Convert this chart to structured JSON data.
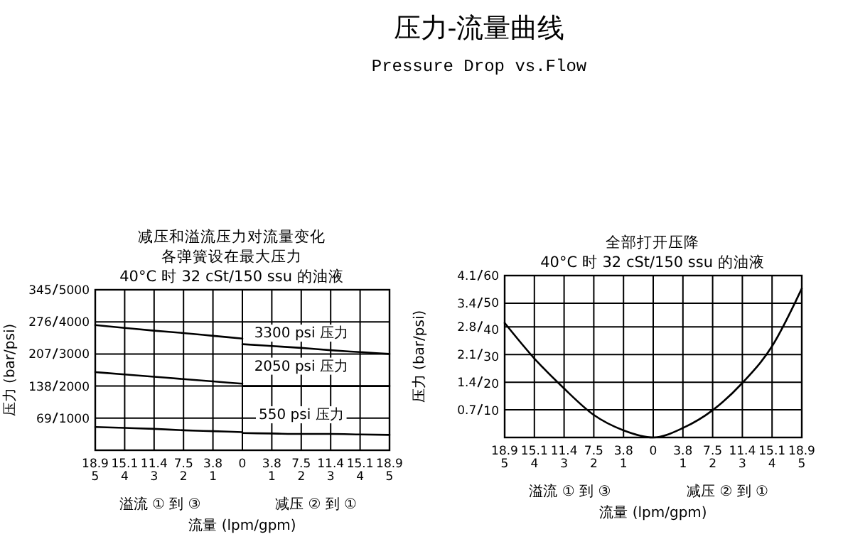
{
  "chart_data": [
    {
      "type": "other",
      "title": "压力-流量曲线",
      "subtitle": "Pressure Drop vs.Flow"
    },
    {
      "type": "line",
      "title": "减压和溢流压力对流量变化各弹簧设在最大压力",
      "subtitle": "40°C 时 32 cSt/150 ssu 的油液",
      "xlabel": "流量 (lpm/gpm)",
      "ylabel": "压力 (bar/psi)",
      "annotations": [
        "溢流 ① 到 ③",
        "减压 ② 到 ①"
      ],
      "categories": [
        "18.9\n5",
        "15.1\n4",
        "11.4\n3",
        "7.5\n2",
        "3.8\n1",
        "0",
        "3.8\n1",
        "7.5\n2",
        "11.4\n3",
        "15.1\n4",
        "18.9\n5"
      ],
      "ylim": [
        0,
        345
      ],
      "yticks": [
        69,
        138,
        207,
        276,
        345
      ],
      "y2lim": [
        0,
        5000
      ],
      "y2ticks": [
        1000,
        2000,
        3000,
        4000,
        5000
      ],
      "grid": true,
      "legend": false,
      "marker": "none",
      "line_style": "solid",
      "series": [
        {
          "color": "#000000",
          "values": [
            269,
            263,
            257,
            252,
            246,
            240,
            null,
            null,
            null,
            null,
            null
          ]
        },
        {
          "name": "3300 psi 压力",
          "color": "#000000",
          "values": [
            null,
            null,
            null,
            null,
            null,
            228,
            224,
            220,
            215,
            211,
            207
          ]
        },
        {
          "color": "#000000",
          "values": [
            168,
            163,
            158,
            153,
            148,
            143,
            null,
            null,
            null,
            null,
            null
          ]
        },
        {
          "name": "2050 psi 压力",
          "color": "#000000",
          "values": [
            null,
            null,
            null,
            null,
            null,
            138,
            138,
            138,
            138,
            138,
            138
          ]
        },
        {
          "color": "#000000",
          "values": [
            50,
            48,
            46,
            43,
            41,
            39,
            null,
            null,
            null,
            null,
            null
          ]
        },
        {
          "name": "550 psi 压力",
          "color": "#000000",
          "values": [
            null,
            null,
            null,
            null,
            null,
            37,
            36,
            35,
            35,
            34,
            33
          ]
        }
      ]
    },
    {
      "type": "line",
      "title": "全部打开压降",
      "subtitle": "40°C 时 32 cSt/150 ssu 的油液",
      "xlabel": "流量 (lpm/gpm)",
      "ylabel": "压力 (bar/psi)",
      "annotations": [
        "溢流 ① 到 ③",
        "减压 ② 到 ①"
      ],
      "categories": [
        "18.9\n5",
        "15.1\n4",
        "11.4\n3",
        "7.5\n2",
        "3.8\n1",
        "0",
        "3.8\n1",
        "7.5\n2",
        "11.4\n3",
        "15.1\n4",
        "18.9\n5"
      ],
      "ylim": [
        0,
        4.1
      ],
      "yticks": [
        0.7,
        1.4,
        2.1,
        2.8,
        3.4,
        4.1
      ],
      "y2lim": [
        0,
        60
      ],
      "y2ticks": [
        10,
        20,
        30,
        40,
        50,
        60
      ],
      "grid": true,
      "legend": false,
      "marker": "none",
      "line_style": "solid",
      "series": [
        {
          "color": "#000000",
          "values": [
            2.9,
            2.0,
            1.24,
            0.57,
            0.18,
            0,
            0.24,
            0.69,
            1.38,
            2.31,
            3.77
          ]
        }
      ]
    }
  ]
}
